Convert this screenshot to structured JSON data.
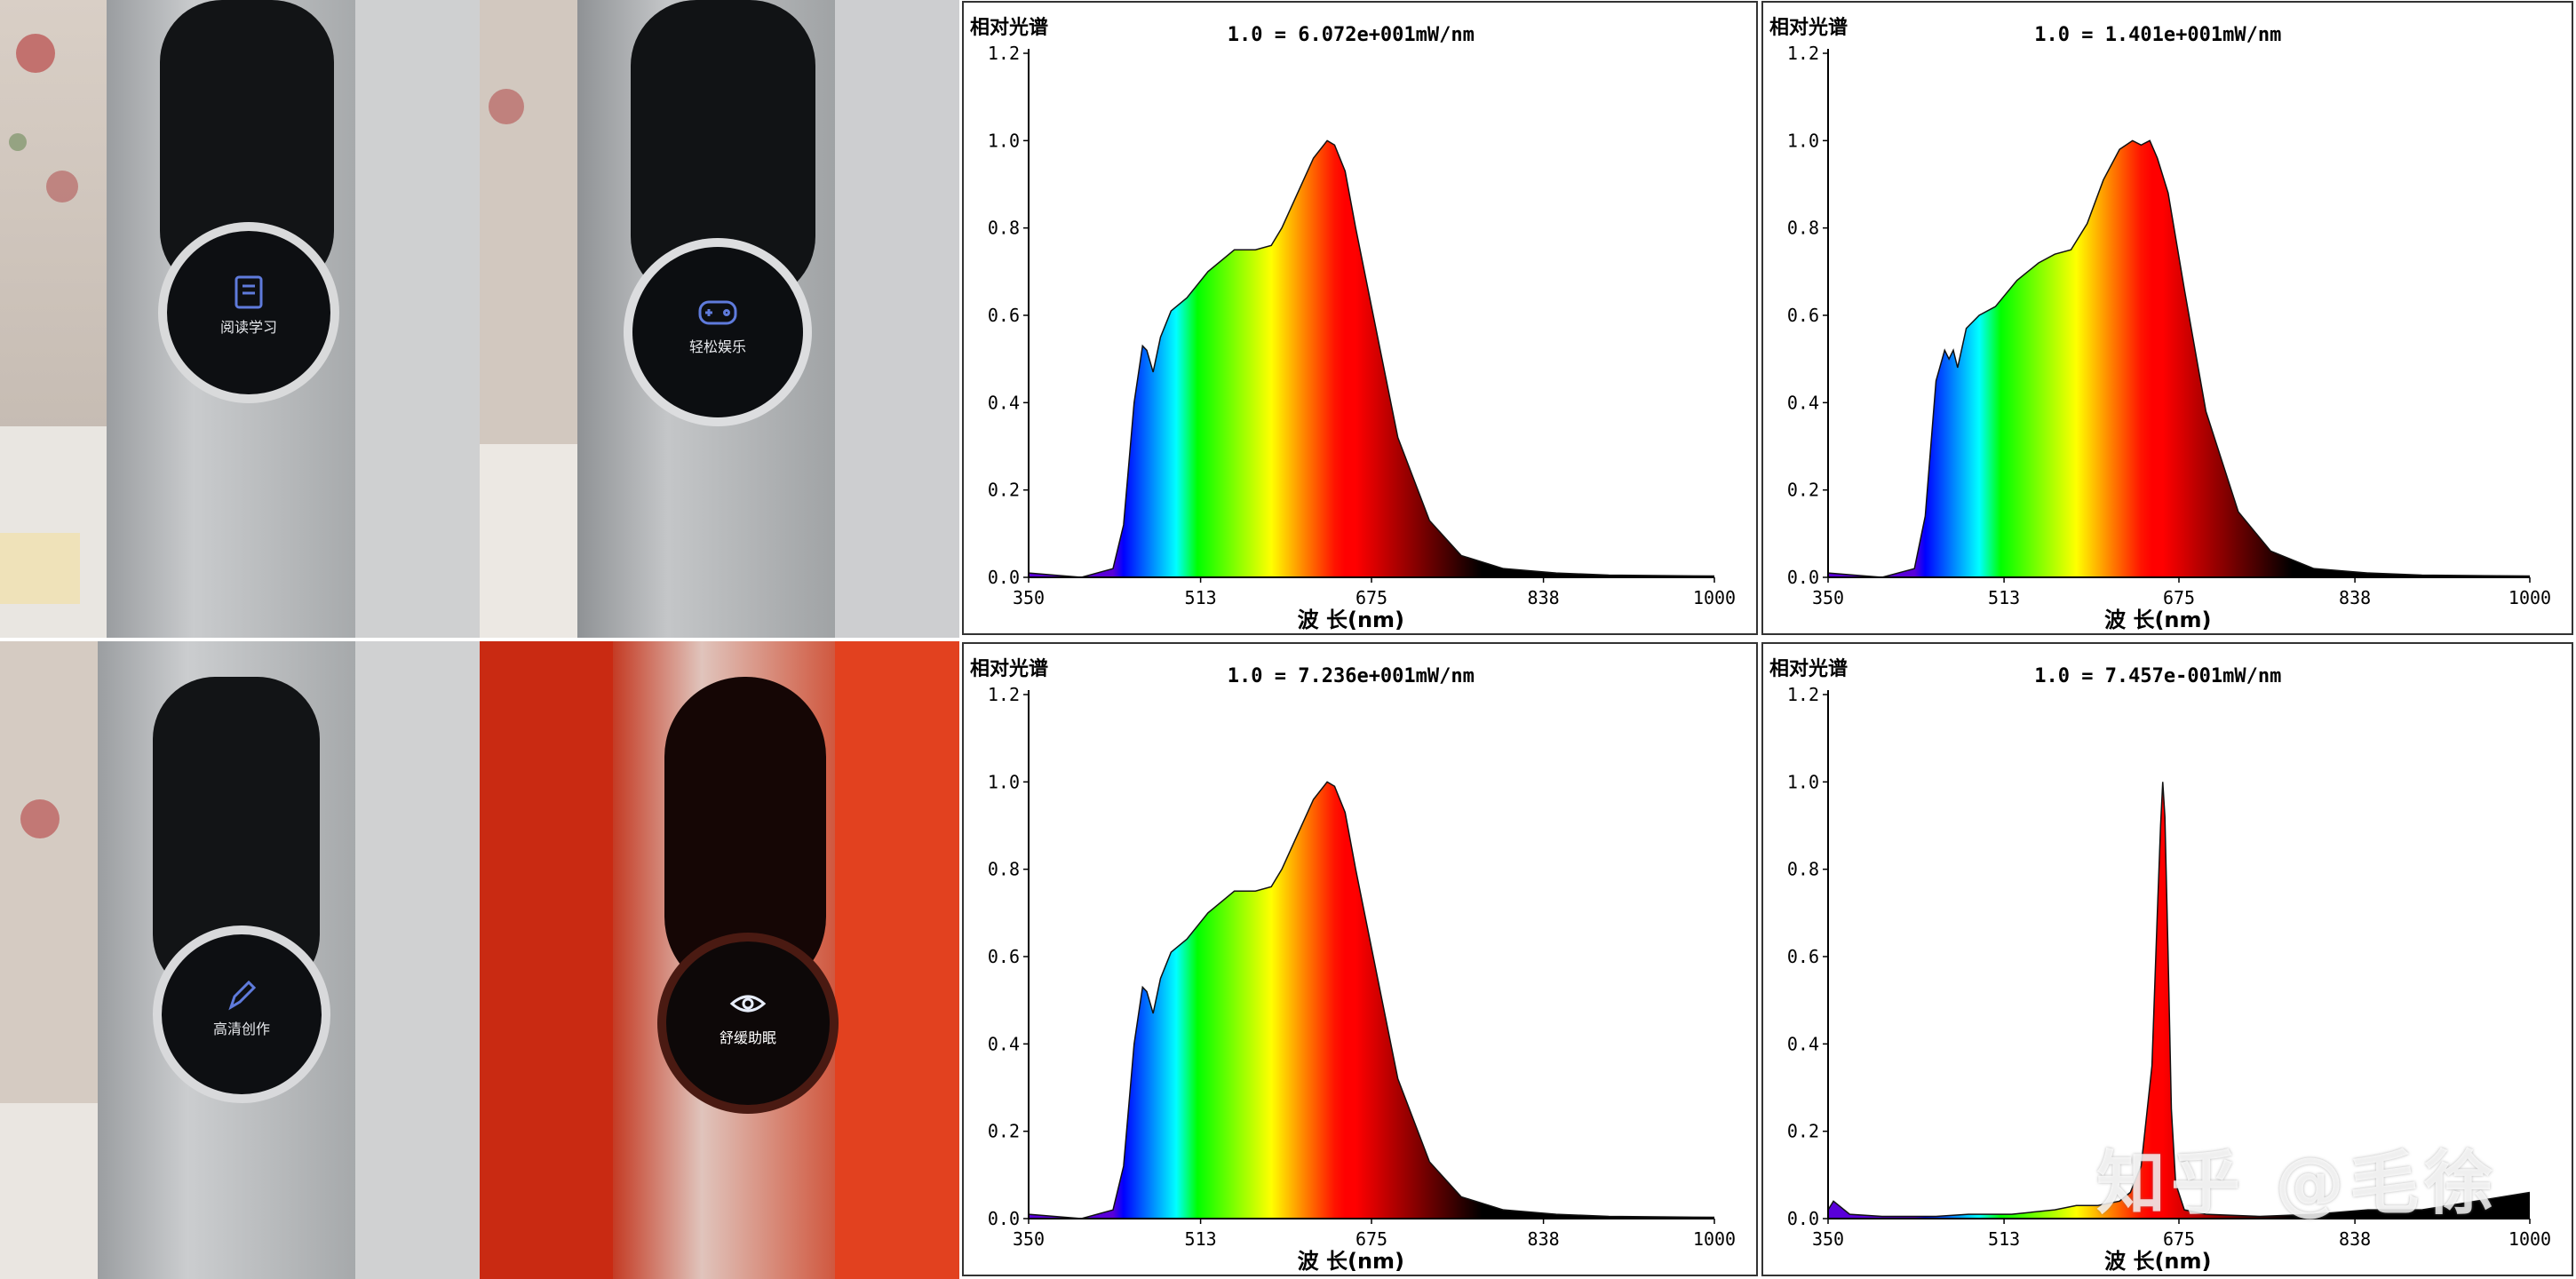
{
  "photos": [
    {
      "mode_label": "阅读学习",
      "icon": "book-icon",
      "theme": "neutral"
    },
    {
      "mode_label": "轻松娱乐",
      "icon": "gamepad-icon",
      "theme": "neutral"
    },
    {
      "mode_label": "高清创作",
      "icon": "pen-icon",
      "theme": "neutral"
    },
    {
      "mode_label": "舒缓助眠",
      "icon": "eye-icon",
      "theme": "red"
    }
  ],
  "chart_common": {
    "title": "相对光谱",
    "xlabel": "波 长(nm)",
    "xlim": [
      350,
      1000
    ],
    "ylim": [
      0,
      1.2
    ],
    "x_ticks": [
      "350",
      "513",
      "675",
      "838",
      "1000"
    ],
    "y_ticks": [
      "0.0",
      "0.2",
      "0.4",
      "0.6",
      "0.8",
      "1.0",
      "1.2"
    ],
    "fill": "spectral rainbow gradient under the curve",
    "grid": false
  },
  "chart_data": [
    {
      "type": "area",
      "norm_label": "1.0 = 6.072e+001mW/nm",
      "x": [
        350,
        400,
        430,
        440,
        450,
        458,
        462,
        468,
        475,
        485,
        500,
        520,
        545,
        565,
        580,
        590,
        605,
        620,
        633,
        640,
        650,
        660,
        675,
        700,
        730,
        760,
        800,
        850,
        900,
        1000
      ],
      "y": [
        0.01,
        0.0,
        0.02,
        0.12,
        0.4,
        0.53,
        0.52,
        0.47,
        0.55,
        0.61,
        0.64,
        0.7,
        0.75,
        0.75,
        0.76,
        0.8,
        0.88,
        0.96,
        1.0,
        0.99,
        0.93,
        0.8,
        0.62,
        0.32,
        0.13,
        0.05,
        0.02,
        0.01,
        0.005,
        0.003
      ]
    },
    {
      "type": "area",
      "norm_label": "1.0 = 1.401e+001mW/nm",
      "x": [
        350,
        400,
        430,
        440,
        450,
        458,
        462,
        466,
        470,
        478,
        490,
        505,
        525,
        545,
        560,
        575,
        590,
        605,
        620,
        632,
        640,
        648,
        655,
        665,
        680,
        700,
        730,
        760,
        800,
        850,
        900,
        1000
      ],
      "y": [
        0.01,
        0.0,
        0.02,
        0.14,
        0.45,
        0.52,
        0.5,
        0.52,
        0.48,
        0.57,
        0.6,
        0.62,
        0.68,
        0.72,
        0.74,
        0.75,
        0.81,
        0.91,
        0.98,
        1.0,
        0.99,
        1.0,
        0.96,
        0.88,
        0.66,
        0.38,
        0.15,
        0.06,
        0.02,
        0.01,
        0.005,
        0.003
      ]
    },
    {
      "type": "area",
      "norm_label": "1.0 = 7.236e+001mW/nm",
      "x": [
        350,
        400,
        430,
        440,
        450,
        458,
        462,
        468,
        475,
        485,
        500,
        520,
        545,
        565,
        580,
        590,
        605,
        620,
        633,
        640,
        650,
        660,
        675,
        700,
        730,
        760,
        800,
        850,
        900,
        1000
      ],
      "y": [
        0.01,
        0.0,
        0.02,
        0.12,
        0.4,
        0.53,
        0.52,
        0.47,
        0.55,
        0.61,
        0.64,
        0.7,
        0.75,
        0.75,
        0.76,
        0.8,
        0.88,
        0.96,
        1.0,
        0.99,
        0.93,
        0.8,
        0.62,
        0.32,
        0.13,
        0.05,
        0.02,
        0.01,
        0.005,
        0.003
      ]
    },
    {
      "type": "area",
      "norm_label": "1.0 = 7.457e-001mW/nm",
      "x": [
        350,
        355,
        370,
        400,
        450,
        480,
        520,
        560,
        580,
        600,
        620,
        630,
        640,
        650,
        655,
        658,
        660,
        662,
        665,
        668,
        672,
        680,
        700,
        750,
        800,
        850,
        900,
        950,
        1000
      ],
      "y": [
        0.02,
        0.04,
        0.01,
        0.005,
        0.005,
        0.01,
        0.01,
        0.02,
        0.03,
        0.03,
        0.04,
        0.06,
        0.12,
        0.35,
        0.7,
        0.9,
        1.0,
        0.92,
        0.6,
        0.25,
        0.08,
        0.02,
        0.01,
        0.005,
        0.01,
        0.02,
        0.02,
        0.04,
        0.06
      ]
    }
  ],
  "watermark": "知乎 @毛徐"
}
